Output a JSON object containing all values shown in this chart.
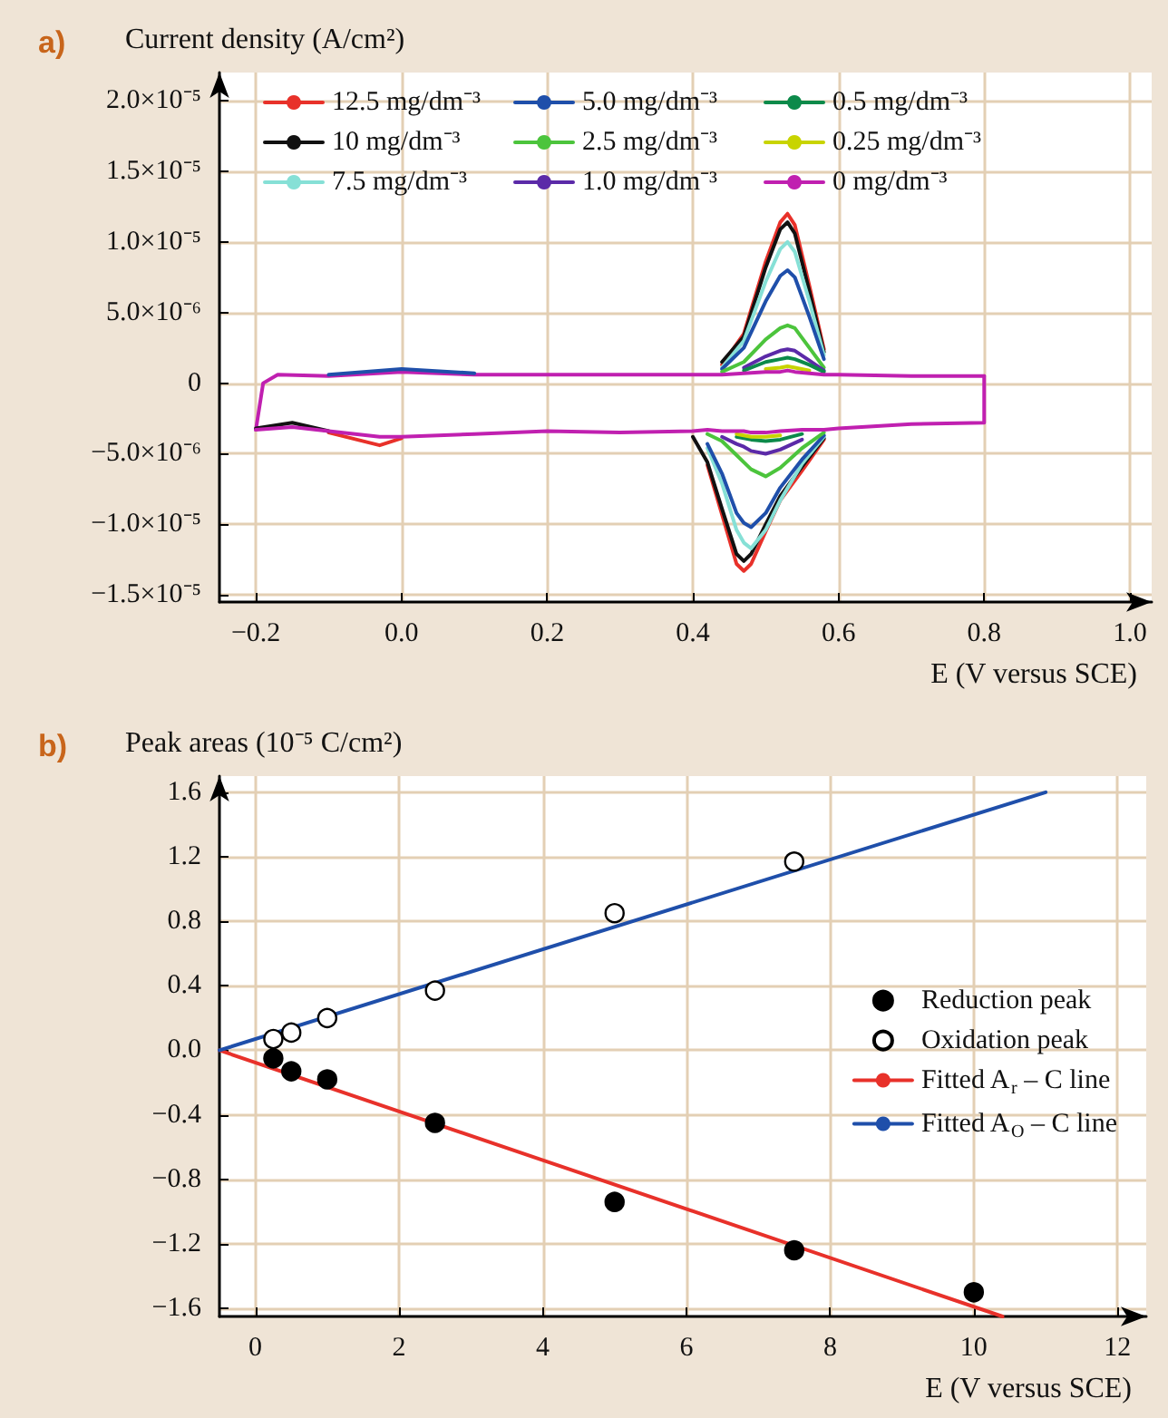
{
  "chart_data": [
    {
      "type": "line",
      "title": "a)",
      "ylabel": "Current density (A/cm²)",
      "xlabel": "E (V versus SCE)",
      "x": [
        -0.2,
        -0.19,
        -0.17,
        -0.1,
        0.0,
        0.1,
        0.2,
        0.3,
        0.4,
        0.44,
        0.47,
        0.5,
        0.52,
        0.53,
        0.54,
        0.56,
        0.58,
        0.6,
        0.7,
        0.8
      ],
      "series": [
        {
          "name": "12.5 mg/dm⁻³",
          "color": "#e8312a",
          "x": [
            0.44,
            0.47,
            0.5,
            0.52,
            0.53,
            0.54,
            0.56,
            0.58
          ],
          "values": [
            1.3e-06,
            3.5e-06,
            8.6e-06,
            1.14e-05,
            1.2e-05,
            1.12e-05,
            6.9e-06,
            2.4e-06
          ]
        },
        {
          "name": "10 mg/dm⁻³",
          "color": "#111111",
          "x": [
            0.44,
            0.47,
            0.5,
            0.52,
            0.53,
            0.54,
            0.56,
            0.58
          ],
          "values": [
            1.5e-06,
            3.3e-06,
            8.2e-06,
            1.09e-05,
            1.14e-05,
            1.06e-05,
            6.5e-06,
            2.2e-06
          ]
        },
        {
          "name": "7.5 mg/dm⁻³",
          "color": "#86e0d6",
          "x": [
            0.44,
            0.47,
            0.5,
            0.52,
            0.53,
            0.54,
            0.56,
            0.58
          ],
          "values": [
            1.1e-06,
            3e-06,
            7.2e-06,
            9.5e-06,
            1e-05,
            9.3e-06,
            5.8e-06,
            2e-06
          ]
        },
        {
          "name": "5.0 mg/dm⁻³",
          "color": "#1f4faa",
          "x": [
            0.44,
            0.47,
            0.5,
            0.52,
            0.53,
            0.54,
            0.56,
            0.58
          ],
          "values": [
            1e-06,
            2.5e-06,
            5.8e-06,
            7.6e-06,
            8e-06,
            7.5e-06,
            4.7e-06,
            1.7e-06
          ]
        },
        {
          "name": "2.5 mg/dm⁻³",
          "color": "#4cc43c",
          "x": [
            0.44,
            0.47,
            0.5,
            0.52,
            0.53,
            0.54,
            0.56,
            0.58
          ],
          "values": [
            8e-07,
            1.5e-06,
            3.1e-06,
            3.9e-06,
            4.1e-06,
            3.9e-06,
            2.5e-06,
            1.1e-06
          ]
        },
        {
          "name": "1.0 mg/dm⁻³",
          "color": "#5b2aa8",
          "x": [
            0.47,
            0.5,
            0.52,
            0.53,
            0.54,
            0.56,
            0.58
          ],
          "values": [
            1.1e-06,
            1.9e-06,
            2.3e-06,
            2.4e-06,
            2.3e-06,
            1.6e-06,
            9e-07
          ]
        },
        {
          "name": "0.5 mg/dm⁻³",
          "color": "#0c8a4a",
          "x": [
            0.47,
            0.5,
            0.52,
            0.53,
            0.54,
            0.56,
            0.58
          ],
          "values": [
            9e-07,
            1.5e-06,
            1.7e-06,
            1.8e-06,
            1.7e-06,
            1.3e-06,
            8e-07
          ]
        },
        {
          "name": "0.25 mg/dm⁻³",
          "color": "#c8d400",
          "x": [
            0.5,
            0.52,
            0.53,
            0.54,
            0.56
          ],
          "values": [
            1e-06,
            1.1e-06,
            1.2e-06,
            1.1e-06,
            9e-07
          ]
        },
        {
          "name": "0 mg/dm⁻³",
          "color": "#c020b0",
          "values": [
            -3.3e-06,
            0,
            6e-07,
            5e-07,
            8e-07,
            6e-07,
            6e-07,
            6e-07,
            6e-07,
            6e-07,
            7e-07,
            8e-07,
            8e-07,
            9e-07,
            8e-07,
            7e-07,
            6e-07,
            6e-07,
            5e-07,
            5e-07
          ]
        },
        {
          "color": "#1f4faa",
          "x": [
            -0.1,
            0.0,
            0.1
          ],
          "values": [
            6e-07,
            1e-06,
            7e-07
          ]
        },
        {
          "color": "#e8312a",
          "x": [
            -0.1,
            -0.03,
            0.0
          ],
          "values": [
            -3.5e-06,
            -4.4e-06,
            -3.9e-06
          ]
        },
        {
          "color": "#e8312a",
          "x": [
            0.42,
            0.44,
            0.46,
            0.47,
            0.48,
            0.5,
            0.52,
            0.55,
            0.58
          ],
          "values": [
            -5.8e-06,
            -9.3e-06,
            -1.28e-05,
            -1.33e-05,
            -1.28e-05,
            -1.05e-05,
            -8.3e-06,
            -6.2e-06,
            -4e-06
          ]
        },
        {
          "color": "#111111",
          "x": [
            -0.2,
            -0.15,
            -0.1
          ],
          "values": [
            -3.2e-06,
            -2.8e-06,
            -3.4e-06
          ]
        },
        {
          "color": "#111111",
          "x": [
            0.4,
            0.42,
            0.44,
            0.46,
            0.47,
            0.48,
            0.5,
            0.52,
            0.55,
            0.58
          ],
          "values": [
            -3.8e-06,
            -5.6e-06,
            -8.9e-06,
            -1.21e-05,
            -1.26e-05,
            -1.21e-05,
            -1e-05,
            -8e-06,
            -5.9e-06,
            -3.9e-06
          ]
        },
        {
          "color": "#86e0d6",
          "x": [
            0.42,
            0.44,
            0.46,
            0.47,
            0.48,
            0.5,
            0.52,
            0.55,
            0.58
          ],
          "values": [
            -4.6e-06,
            -7.1e-06,
            -1.04e-05,
            -1.13e-05,
            -1.17e-05,
            -1.04e-05,
            -8.3e-06,
            -5.7e-06,
            -3.8e-06
          ]
        },
        {
          "color": "#1f4faa",
          "x": [
            0.42,
            0.44,
            0.46,
            0.47,
            0.48,
            0.5,
            0.52,
            0.55,
            0.58
          ],
          "values": [
            -4.3e-06,
            -6.4e-06,
            -9.2e-06,
            -9.9e-06,
            -1.02e-05,
            -9.2e-06,
            -7.4e-06,
            -5.4e-06,
            -3.7e-06
          ]
        },
        {
          "color": "#4cc43c",
          "x": [
            0.42,
            0.44,
            0.46,
            0.47,
            0.48,
            0.5,
            0.52,
            0.55,
            0.58
          ],
          "values": [
            -3.6e-06,
            -4.1e-06,
            -5.1e-06,
            -5.6e-06,
            -6.1e-06,
            -6.6e-06,
            -6e-06,
            -4.6e-06,
            -3.5e-06
          ]
        },
        {
          "color": "#5b2aa8",
          "x": [
            0.44,
            0.46,
            0.47,
            0.48,
            0.5,
            0.52,
            0.55
          ],
          "values": [
            -3.8e-06,
            -4.3e-06,
            -4.5e-06,
            -4.8e-06,
            -5e-06,
            -4.7e-06,
            -4e-06
          ]
        },
        {
          "color": "#0c8a4a",
          "x": [
            0.46,
            0.47,
            0.48,
            0.5,
            0.52,
            0.55
          ],
          "values": [
            -3.8e-06,
            -3.9e-06,
            -4e-06,
            -4.1e-06,
            -4e-06,
            -3.6e-06
          ]
        },
        {
          "color": "#c8d400",
          "x": [
            0.46,
            0.47,
            0.48,
            0.5,
            0.52
          ],
          "values": [
            -3.6e-06,
            -3.7e-06,
            -3.8e-06,
            -3.8e-06,
            -3.7e-06
          ]
        },
        {
          "color": "#c020b0",
          "x": [
            -0.2,
            -0.15,
            -0.1,
            -0.03,
            0.0,
            0.1,
            0.2,
            0.3,
            0.4,
            0.42,
            0.44,
            0.46,
            0.47,
            0.48,
            0.5,
            0.52,
            0.55,
            0.58,
            0.6,
            0.7,
            0.8,
            0.8
          ],
          "values": [
            -3.3e-06,
            -3.1e-06,
            -3.4e-06,
            -3.8e-06,
            -3.8e-06,
            -3.6e-06,
            -3.4e-06,
            -3.5e-06,
            -3.4e-06,
            -3.3e-06,
            -3.4e-06,
            -3.4e-06,
            -3.4e-06,
            -3.5e-06,
            -3.5e-06,
            -3.4e-06,
            -3.3e-06,
            -3.3e-06,
            -3.2e-06,
            -2.9e-06,
            -2.8e-06,
            5e-07
          ]
        }
      ],
      "marker": "none",
      "grid": true,
      "legend": "top",
      "xlim": [
        -0.25,
        1.03
      ],
      "xticks": [
        {
          "value": -0.2,
          "label": "−0.2"
        },
        {
          "value": 0,
          "label": "0.0"
        },
        0.2,
        0.4,
        0.6,
        0.8,
        {
          "value": 1.0,
          "label": "1.0"
        }
      ],
      "ylim": [
        -1.55e-05,
        2.2e-05
      ],
      "yticks": [
        {
          "value": 2e-05,
          "label": "2.0×10⁻⁵"
        },
        {
          "value": 1.5e-05,
          "label": "1.5×10⁻⁵"
        },
        {
          "value": 1e-05,
          "label": "1.0×10⁻⁵"
        },
        {
          "value": 5e-06,
          "label": "5.0×10⁻⁶"
        },
        0,
        {
          "value": -5e-06,
          "label": "−5.0×10⁻⁶"
        },
        {
          "value": -1e-05,
          "label": "−1.0×10⁻⁵"
        },
        {
          "value": -1.5e-05,
          "label": "−1.5×10⁻⁵"
        }
      ]
    },
    {
      "type": "scatter",
      "title": "b)",
      "ylabel": "Peak areas (10⁻⁵ C/cm²)",
      "xlabel": "E (V versus SCE)",
      "series": [
        {
          "name": "Reduction peak",
          "marker": "circle",
          "color": "#000000",
          "x": [
            0.25,
            0.5,
            1,
            2.5,
            5,
            7.5,
            10
          ],
          "values": [
            -0.05,
            -0.13,
            -0.18,
            -0.45,
            -0.94,
            -1.24,
            -1.5
          ]
        },
        {
          "name": "Oxidation peak",
          "marker": "circle",
          "color": "#ffffff",
          "x": [
            0.25,
            0.5,
            1,
            2.5,
            5,
            7.5
          ],
          "values": [
            0.07,
            0.11,
            0.2,
            0.37,
            0.85,
            1.17
          ]
        },
        {
          "name": "Fitted A$_{r}$ – C line",
          "type": "line",
          "marker": "none",
          "color": "#e8312a",
          "x": [
            -0.5,
            10.4
          ],
          "values": [
            0,
            -1.65
          ]
        },
        {
          "name": "Fitted A$_{O}$ – C line",
          "type": "line",
          "marker": "none",
          "color": "#1f4faa",
          "x": [
            -0.5,
            11.0
          ],
          "values": [
            0,
            1.6
          ]
        }
      ],
      "grid": true,
      "legend": "right",
      "xlim": [
        -0.5,
        12.4
      ],
      "xticks": [
        0,
        2,
        4,
        6,
        8,
        10,
        12
      ],
      "ylim": [
        -1.65,
        1.7
      ],
      "yticks": [
        1.6,
        1.2,
        0.8,
        0.4,
        {
          "value": 0,
          "label": "0.0"
        },
        {
          "value": -0.4,
          "label": "−0.4"
        },
        {
          "value": -0.8,
          "label": "−0.8"
        },
        {
          "value": -1.2,
          "label": "−1.2"
        },
        {
          "value": -1.6,
          "label": "−1.6"
        }
      ]
    }
  ]
}
